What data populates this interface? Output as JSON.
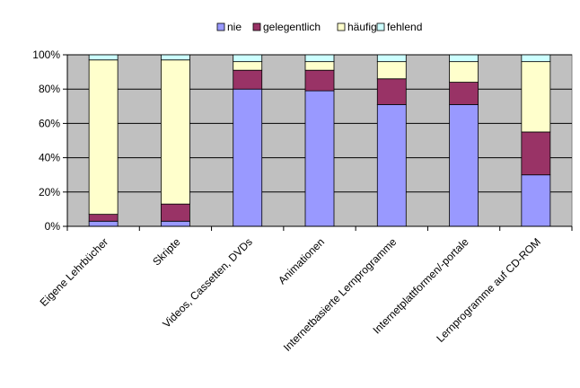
{
  "chart_data": {
    "type": "bar",
    "stacked": true,
    "percent": true,
    "categories": [
      "Eigene Lehrbücher",
      "Skripte",
      "Videos, Cassetten, DVDs",
      "Animationen",
      "Internetbasierte Lernprogramme",
      "Internetplattformen/-portale",
      "Lernprogramme auf CD-ROM"
    ],
    "series": [
      {
        "name": "nie",
        "color": "#9999ff",
        "values": [
          3,
          3,
          80,
          79,
          71,
          71,
          30
        ]
      },
      {
        "name": "gelegentlich",
        "color": "#993366",
        "values": [
          4,
          10,
          11,
          12,
          15,
          13,
          25
        ]
      },
      {
        "name": "häufig",
        "color": "#ffffcc",
        "values": [
          90,
          84,
          5,
          5,
          10,
          12,
          41
        ]
      },
      {
        "name": "fehlend",
        "color": "#ccffff",
        "values": [
          3,
          3,
          4,
          4,
          4,
          4,
          4
        ]
      }
    ],
    "yticks": [
      "0%",
      "20%",
      "40%",
      "60%",
      "80%",
      "100%"
    ],
    "ylim": [
      0,
      100
    ],
    "grid": true,
    "plot_background": "#c0c0c0",
    "legend_position": "top"
  }
}
